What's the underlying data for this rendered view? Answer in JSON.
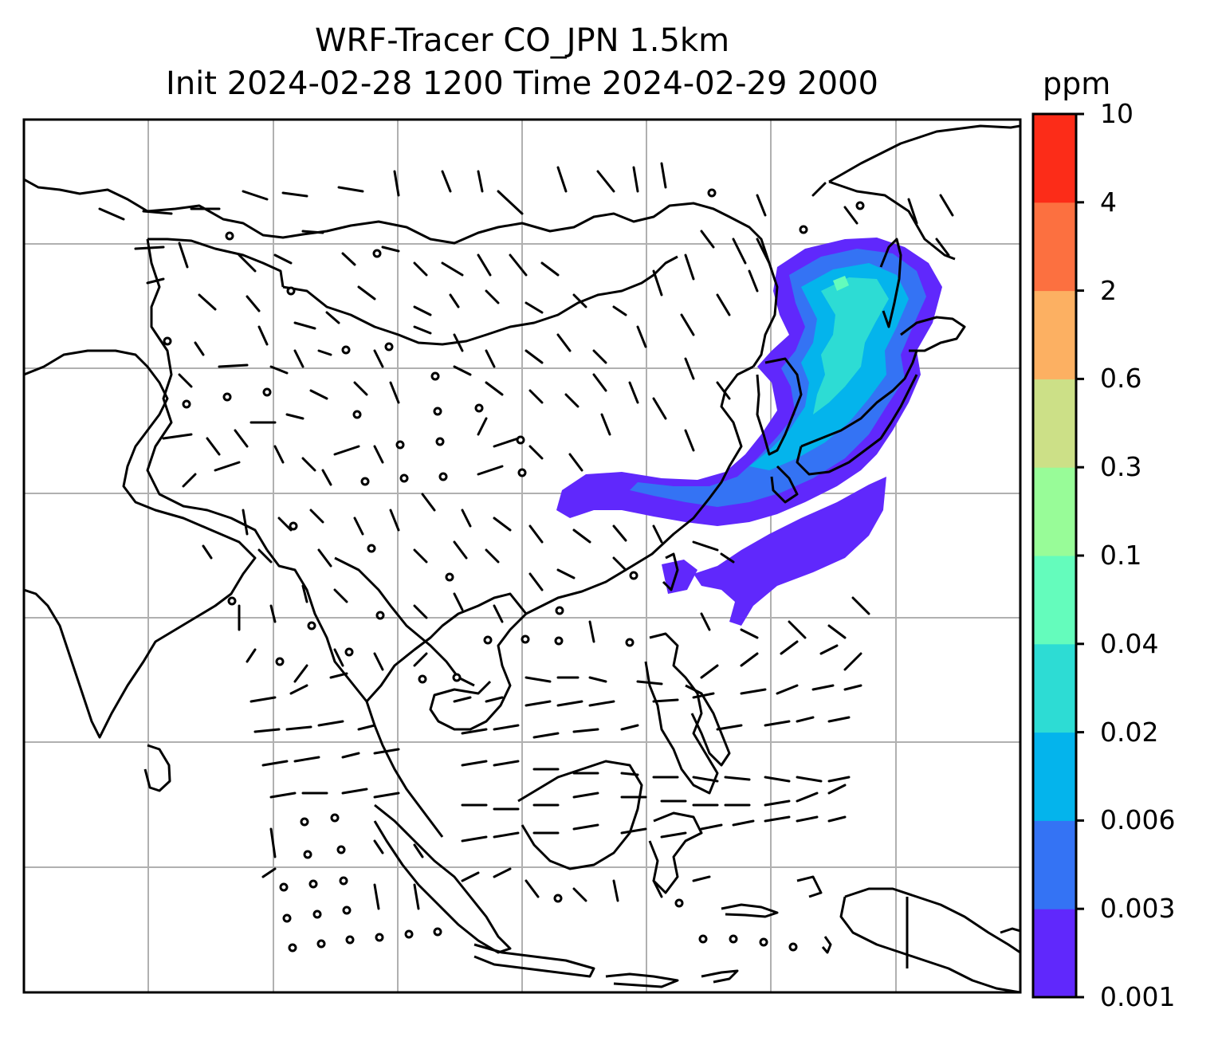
{
  "title": {
    "line1": "WRF-Tracer CO_JPN 1.5km",
    "line2": "Init 2024-02-28 1200 Time 2024-02-29 2000"
  },
  "colorbar": {
    "unit": "ppm",
    "ticks": [
      "0.001",
      "0.003",
      "0.006",
      "0.02",
      "0.04",
      "0.1",
      "0.3",
      "0.6",
      "2",
      "4",
      "10"
    ],
    "colors": [
      "#6028fc",
      "#3473f4",
      "#04b4ec",
      "#2ddcd4",
      "#64fcbc",
      "#98fc98",
      "#cce087",
      "#fcb062",
      "#fc7040",
      "#fc2c18"
    ]
  },
  "map": {
    "grid": true,
    "fields": [
      "CO tracer concentration (shaded)",
      "wind barbs"
    ]
  }
}
